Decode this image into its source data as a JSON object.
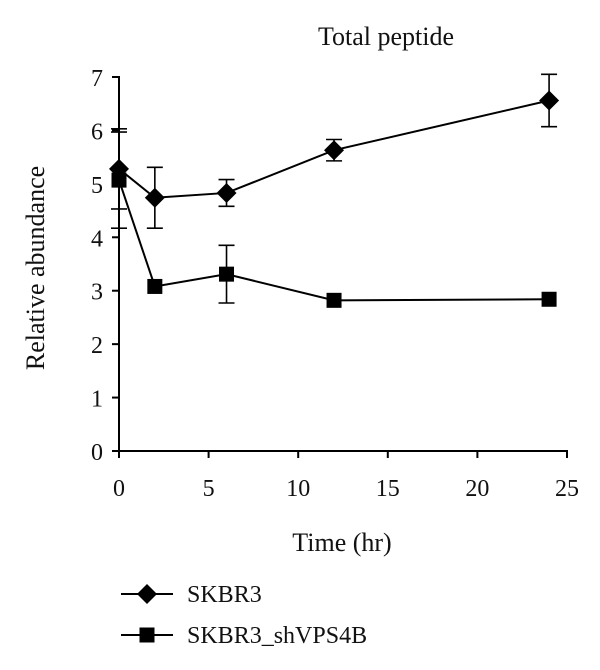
{
  "chart_data": {
    "type": "line",
    "title": "Total peptide",
    "xlabel": "Time (hr)",
    "ylabel": "Relative abundance",
    "xlim": [
      0,
      25
    ],
    "ylim": [
      0,
      7
    ],
    "xticks": [
      0,
      5,
      10,
      15,
      20,
      25
    ],
    "yticks": [
      0,
      1,
      2,
      3,
      4,
      5,
      6,
      7
    ],
    "xtick_labels": [
      "0",
      "5",
      "10",
      "15",
      "20",
      "25"
    ],
    "ytick_labels": [
      "0",
      "1",
      "2",
      "3",
      "4",
      "5",
      "6",
      "7"
    ],
    "grid": false,
    "legend_position": "bottom-left, below plot",
    "series": [
      {
        "name": "SKBR3",
        "marker": "diamond",
        "color": "#000000",
        "x": [
          0,
          2,
          6,
          12,
          24
        ],
        "y": [
          5.28,
          4.74,
          4.83,
          5.63,
          6.56
        ],
        "error": [
          0.75,
          0.57,
          0.25,
          0.2,
          0.49
        ]
      },
      {
        "name": "SKBR3_shVPS4B",
        "marker": "square",
        "color": "#000000",
        "x": [
          0,
          2,
          6,
          12,
          24
        ],
        "y": [
          5.07,
          3.08,
          3.31,
          2.82,
          2.84
        ],
        "error": [
          0.9,
          0.0,
          0.54,
          0.0,
          0.0
        ]
      }
    ]
  }
}
